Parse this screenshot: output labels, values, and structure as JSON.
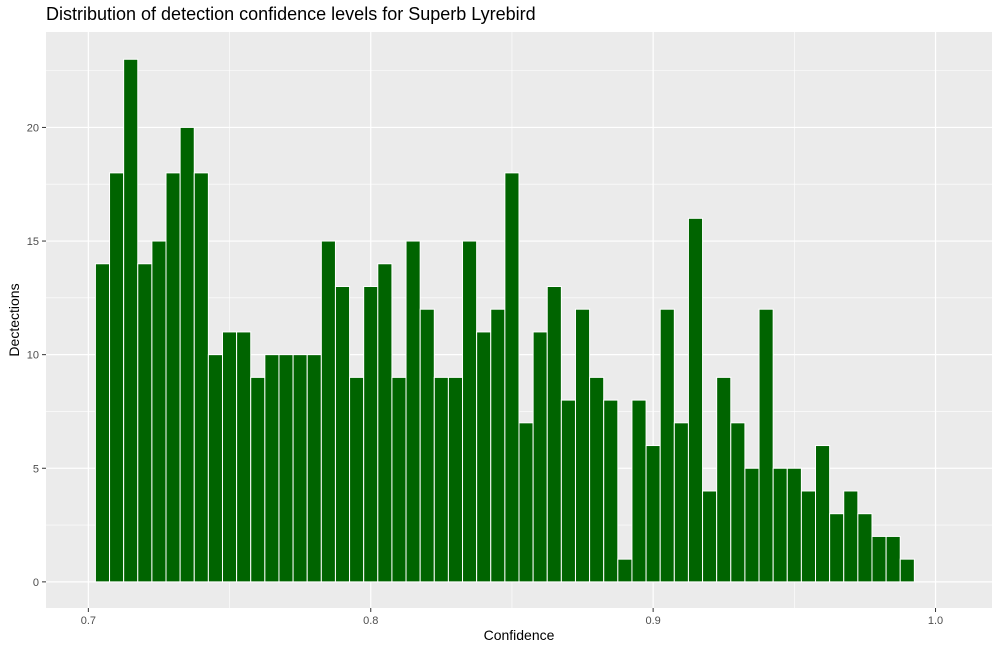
{
  "chart_data": {
    "type": "bar",
    "title": "Distribution of detection confidence levels for Superb Lyrebird",
    "xlabel": "Confidence",
    "ylabel": "Dectections",
    "xlim": [
      0.685,
      1.02
    ],
    "ylim": [
      -1.15,
      24.2
    ],
    "x_ticks": [
      0.7,
      0.8,
      0.9,
      1.0
    ],
    "x_tick_labels": [
      "0.7",
      "0.8",
      "0.9",
      "1.0"
    ],
    "y_ticks": [
      0,
      5,
      10,
      15,
      20
    ],
    "y_tick_labels": [
      "0",
      "5",
      "10",
      "15",
      "20"
    ],
    "grid": true,
    "bin_width": 0.005,
    "bin_starts": [
      0.7025,
      0.7075,
      0.7125,
      0.7175,
      0.7225,
      0.7275,
      0.7325,
      0.7375,
      0.7425,
      0.7475,
      0.7525,
      0.7575,
      0.7625,
      0.7675,
      0.7725,
      0.7775,
      0.7825,
      0.7875,
      0.7925,
      0.7975,
      0.8025,
      0.8075,
      0.8125,
      0.8175,
      0.8225,
      0.8275,
      0.8325,
      0.8375,
      0.8425,
      0.8475,
      0.8525,
      0.8575,
      0.8625,
      0.8675,
      0.8725,
      0.8775,
      0.8825,
      0.8875,
      0.8925,
      0.8975,
      0.9025,
      0.9075,
      0.9125,
      0.9175,
      0.9225,
      0.9275,
      0.9325,
      0.9375,
      0.9425,
      0.9475,
      0.9525,
      0.9575,
      0.9625,
      0.9675,
      0.9725,
      0.9775,
      0.9825,
      0.9875
    ],
    "values": [
      14,
      18,
      23,
      14,
      15,
      18,
      20,
      18,
      10,
      11,
      11,
      9,
      10,
      10,
      10,
      10,
      15,
      13,
      9,
      13,
      14,
      9,
      15,
      12,
      9,
      9,
      15,
      11,
      12,
      18,
      7,
      11,
      13,
      8,
      12,
      9,
      8,
      1,
      8,
      6,
      12,
      7,
      16,
      4,
      9,
      7,
      5,
      12,
      5,
      5,
      4,
      6,
      3,
      4,
      3,
      2,
      2,
      1
    ],
    "colors": {
      "bar_fill": "#006400",
      "bar_stroke": "#ffffff",
      "panel_background": "#ebebeb",
      "grid": "#ffffff"
    }
  }
}
